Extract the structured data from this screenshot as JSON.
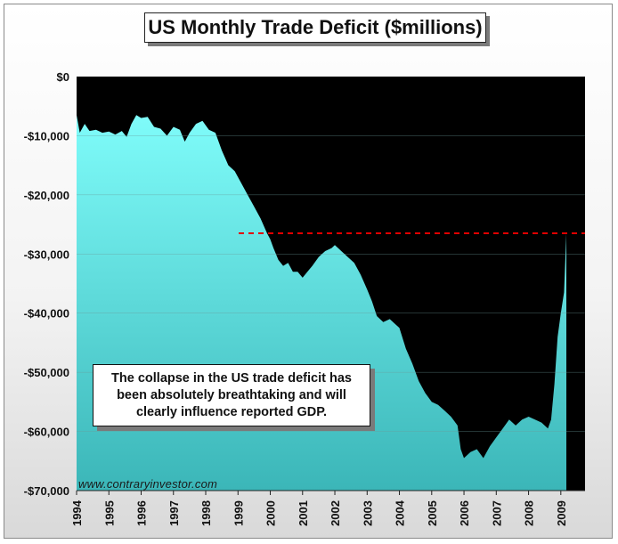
{
  "chart_data": {
    "type": "area",
    "title": "US Monthly Trade Deficit ($millions)",
    "xlabel": "",
    "ylabel": "",
    "ylim": [
      -70000,
      0
    ],
    "yticks": [
      0,
      -10000,
      -20000,
      -30000,
      -40000,
      -50000,
      -60000,
      -70000
    ],
    "ytick_labels": [
      "$0",
      "-$10,000",
      "-$20,000",
      "-$30,000",
      "-$40,000",
      "-$50,000",
      "-$60,000",
      "-$70,000"
    ],
    "xlim": [
      1994,
      2009.75
    ],
    "xtick_labels": [
      "1994",
      "1995",
      "1996",
      "1997",
      "1998",
      "1999",
      "2000",
      "2001",
      "2002",
      "2003",
      "2004",
      "2005",
      "2006",
      "2007",
      "2008",
      "2009"
    ],
    "reference_line": {
      "value": -26500,
      "style": "dashed",
      "color": "#e00000"
    },
    "series": [
      {
        "name": "US Monthly Trade Deficit",
        "points": [
          [
            1994.0,
            -6500
          ],
          [
            1994.1,
            -9500
          ],
          [
            1994.25,
            -8000
          ],
          [
            1994.4,
            -9200
          ],
          [
            1994.6,
            -9000
          ],
          [
            1994.8,
            -9500
          ],
          [
            1995.0,
            -9300
          ],
          [
            1995.2,
            -9800
          ],
          [
            1995.4,
            -9200
          ],
          [
            1995.55,
            -10200
          ],
          [
            1995.7,
            -8000
          ],
          [
            1995.85,
            -6500
          ],
          [
            1996.0,
            -7000
          ],
          [
            1996.2,
            -6800
          ],
          [
            1996.4,
            -8500
          ],
          [
            1996.6,
            -8800
          ],
          [
            1996.8,
            -10000
          ],
          [
            1997.0,
            -8500
          ],
          [
            1997.2,
            -9000
          ],
          [
            1997.35,
            -11000
          ],
          [
            1997.5,
            -9500
          ],
          [
            1997.7,
            -8000
          ],
          [
            1997.9,
            -7500
          ],
          [
            1998.1,
            -9000
          ],
          [
            1998.3,
            -9500
          ],
          [
            1998.5,
            -12500
          ],
          [
            1998.7,
            -15000
          ],
          [
            1998.9,
            -16000
          ],
          [
            1999.1,
            -18000
          ],
          [
            1999.3,
            -20000
          ],
          [
            1999.5,
            -22000
          ],
          [
            1999.7,
            -24000
          ],
          [
            1999.9,
            -26500
          ],
          [
            2000.0,
            -27500
          ],
          [
            2000.1,
            -29000
          ],
          [
            2000.25,
            -31000
          ],
          [
            2000.4,
            -32000
          ],
          [
            2000.55,
            -31500
          ],
          [
            2000.7,
            -33000
          ],
          [
            2000.85,
            -33000
          ],
          [
            2001.0,
            -34000
          ],
          [
            2001.15,
            -33000
          ],
          [
            2001.3,
            -32000
          ],
          [
            2001.5,
            -30500
          ],
          [
            2001.7,
            -29500
          ],
          [
            2001.9,
            -29000
          ],
          [
            2002.0,
            -28500
          ],
          [
            2002.2,
            -29500
          ],
          [
            2002.4,
            -30500
          ],
          [
            2002.6,
            -31500
          ],
          [
            2002.8,
            -33500
          ],
          [
            2003.0,
            -36000
          ],
          [
            2003.15,
            -38000
          ],
          [
            2003.3,
            -40500
          ],
          [
            2003.5,
            -41500
          ],
          [
            2003.7,
            -41000
          ],
          [
            2003.9,
            -42000
          ],
          [
            2004.0,
            -42500
          ],
          [
            2004.2,
            -46000
          ],
          [
            2004.4,
            -48500
          ],
          [
            2004.6,
            -51500
          ],
          [
            2004.8,
            -53500
          ],
          [
            2005.0,
            -55000
          ],
          [
            2005.2,
            -55500
          ],
          [
            2005.4,
            -56500
          ],
          [
            2005.6,
            -57500
          ],
          [
            2005.8,
            -59000
          ],
          [
            2005.9,
            -63000
          ],
          [
            2006.0,
            -64500
          ],
          [
            2006.2,
            -63500
          ],
          [
            2006.4,
            -63000
          ],
          [
            2006.6,
            -64500
          ],
          [
            2006.8,
            -62500
          ],
          [
            2007.0,
            -61000
          ],
          [
            2007.2,
            -59500
          ],
          [
            2007.4,
            -58000
          ],
          [
            2007.6,
            -59000
          ],
          [
            2007.8,
            -58000
          ],
          [
            2008.0,
            -57500
          ],
          [
            2008.2,
            -58000
          ],
          [
            2008.4,
            -58500
          ],
          [
            2008.6,
            -59500
          ],
          [
            2008.7,
            -58000
          ],
          [
            2008.8,
            -52000
          ],
          [
            2008.9,
            -44000
          ],
          [
            2009.0,
            -40000
          ],
          [
            2009.1,
            -36500
          ],
          [
            2009.17,
            -26500
          ]
        ]
      }
    ],
    "annotation": "The collapse in the US trade deficit has been absolutely breathtaking and will clearly influence reported GDP.",
    "source_watermark": "www.contraryinvestor.com"
  },
  "colors": {
    "area_top": "#7ffcfa",
    "area_bottom": "#3bb6b8",
    "deficit_region": "#000000",
    "reference_line": "#e00000"
  }
}
